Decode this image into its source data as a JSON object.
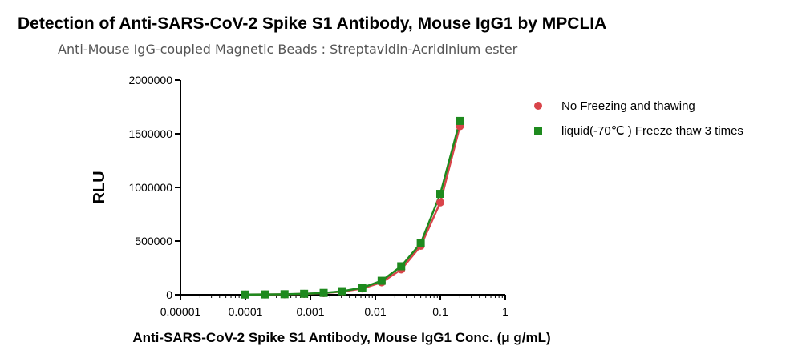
{
  "chart_data": {
    "type": "scatter",
    "title": "Detection of Anti-SARS-CoV-2 Spike S1 Antibody, Mouse IgG1 by MPCLIA",
    "subtitle": "Anti-Mouse IgG-coupled Magnetic Beads : Streptavidin-Acridinium ester",
    "xlabel": "Anti-SARS-CoV-2 Spike S1 Antibody, Mouse IgG1 Conc. (μ g/mL)",
    "ylabel": "RLU",
    "x_scale": "log",
    "xlim": [
      1e-05,
      1
    ],
    "ylim": [
      0,
      2000000
    ],
    "x_ticks": [
      1e-05,
      0.0001,
      0.001,
      0.01,
      0.1,
      1
    ],
    "x_tick_labels": [
      "0.00001",
      "0.0001",
      "0.001",
      "0.01",
      "0.1",
      "1"
    ],
    "y_ticks": [
      0,
      500000,
      1000000,
      1500000,
      2000000
    ],
    "y_tick_labels": [
      "0",
      "500000",
      "1000000",
      "1500000",
      "2000000"
    ],
    "legend_position": "right",
    "fit_line": true,
    "series": [
      {
        "name": "No Freezing and thawing",
        "marker": "circle",
        "color": "#d9444a",
        "x": [
          0.0001,
          0.0002,
          0.0004,
          0.0008,
          0.0016,
          0.0031,
          0.0063,
          0.0125,
          0.025,
          0.05,
          0.1,
          0.2
        ],
        "y": [
          1500,
          2500,
          4000,
          8000,
          15000,
          30000,
          58000,
          115000,
          235000,
          455000,
          860000,
          1570000
        ]
      },
      {
        "name": "liquid(-70℃ ) Freeze thaw 3 times",
        "marker": "square",
        "color": "#1e8a1e",
        "x": [
          0.0001,
          0.0002,
          0.0004,
          0.0008,
          0.0016,
          0.0031,
          0.0063,
          0.0125,
          0.025,
          0.05,
          0.1,
          0.2
        ],
        "y": [
          2000,
          3000,
          5000,
          9000,
          17000,
          33000,
          65000,
          130000,
          265000,
          480000,
          940000,
          1620000
        ]
      }
    ]
  }
}
